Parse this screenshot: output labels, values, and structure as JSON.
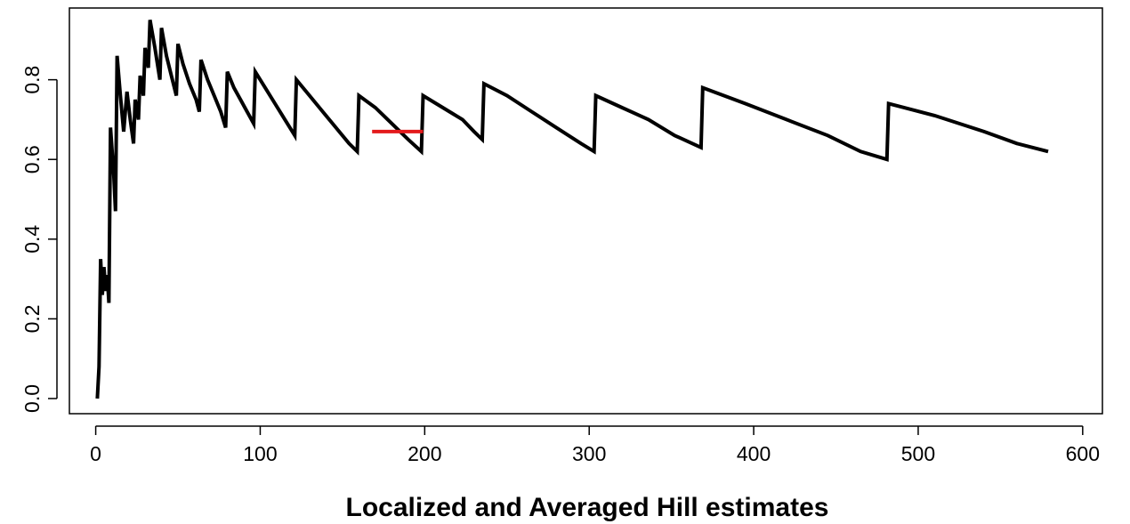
{
  "chart_data": {
    "type": "line",
    "title": "",
    "xlabel": "Localized and Averaged Hill estimates",
    "ylabel": "",
    "xlim": [
      -16,
      612
    ],
    "ylim": [
      -0.038,
      0.98
    ],
    "x_ticks": [
      0,
      100,
      200,
      300,
      400,
      500,
      600
    ],
    "y_ticks": [
      0.0,
      0.2,
      0.4,
      0.6,
      0.8
    ],
    "x_tick_labels": [
      "0",
      "100",
      "200",
      "300",
      "400",
      "500",
      "600"
    ],
    "y_tick_labels": [
      "0.0",
      "0.2",
      "0.4",
      "0.6",
      "0.8"
    ],
    "grid": false,
    "legend": "none",
    "series": [
      {
        "color": "#000000",
        "points": [
          [
            1,
            0.0
          ],
          [
            2,
            0.08
          ],
          [
            3,
            0.35
          ],
          [
            4,
            0.26
          ],
          [
            5,
            0.33
          ],
          [
            6,
            0.27
          ],
          [
            7,
            0.31
          ],
          [
            8,
            0.24
          ],
          [
            9,
            0.68
          ],
          [
            11,
            0.56
          ],
          [
            12,
            0.47
          ],
          [
            13,
            0.86
          ],
          [
            15,
            0.76
          ],
          [
            17,
            0.67
          ],
          [
            19,
            0.77
          ],
          [
            21,
            0.7
          ],
          [
            23,
            0.64
          ],
          [
            24,
            0.75
          ],
          [
            26,
            0.7
          ],
          [
            27,
            0.81
          ],
          [
            29,
            0.76
          ],
          [
            30,
            0.88
          ],
          [
            32,
            0.83
          ],
          [
            33,
            0.95
          ],
          [
            36,
            0.88
          ],
          [
            39,
            0.8
          ],
          [
            40,
            0.93
          ],
          [
            43,
            0.86
          ],
          [
            46,
            0.81
          ],
          [
            49,
            0.76
          ],
          [
            50,
            0.89
          ],
          [
            53,
            0.84
          ],
          [
            57,
            0.79
          ],
          [
            61,
            0.75
          ],
          [
            63,
            0.72
          ],
          [
            64,
            0.85
          ],
          [
            68,
            0.8
          ],
          [
            72,
            0.76
          ],
          [
            76,
            0.72
          ],
          [
            79,
            0.68
          ],
          [
            80,
            0.82
          ],
          [
            84,
            0.78
          ],
          [
            88,
            0.75
          ],
          [
            92,
            0.72
          ],
          [
            96,
            0.69
          ],
          [
            97,
            0.82
          ],
          [
            103,
            0.78
          ],
          [
            109,
            0.74
          ],
          [
            115,
            0.7
          ],
          [
            121,
            0.66
          ],
          [
            122,
            0.8
          ],
          [
            130,
            0.76
          ],
          [
            138,
            0.72
          ],
          [
            146,
            0.68
          ],
          [
            154,
            0.64
          ],
          [
            159,
            0.62
          ],
          [
            160,
            0.76
          ],
          [
            170,
            0.73
          ],
          [
            180,
            0.69
          ],
          [
            190,
            0.65
          ],
          [
            198,
            0.62
          ],
          [
            199,
            0.76
          ],
          [
            207,
            0.74
          ],
          [
            215,
            0.72
          ],
          [
            223,
            0.7
          ],
          [
            230,
            0.67
          ],
          [
            235,
            0.65
          ],
          [
            236,
            0.79
          ],
          [
            250,
            0.76
          ],
          [
            265,
            0.72
          ],
          [
            280,
            0.68
          ],
          [
            295,
            0.64
          ],
          [
            303,
            0.62
          ],
          [
            304,
            0.76
          ],
          [
            320,
            0.73
          ],
          [
            336,
            0.7
          ],
          [
            352,
            0.66
          ],
          [
            368,
            0.63
          ],
          [
            369,
            0.78
          ],
          [
            395,
            0.74
          ],
          [
            420,
            0.7
          ],
          [
            445,
            0.66
          ],
          [
            465,
            0.62
          ],
          [
            481,
            0.6
          ],
          [
            482,
            0.74
          ],
          [
            510,
            0.71
          ],
          [
            540,
            0.67
          ],
          [
            560,
            0.64
          ],
          [
            579,
            0.62
          ]
        ]
      },
      {
        "color": "#e31a1c",
        "points": [
          [
            168,
            0.67
          ],
          [
            199,
            0.67
          ]
        ]
      }
    ]
  }
}
